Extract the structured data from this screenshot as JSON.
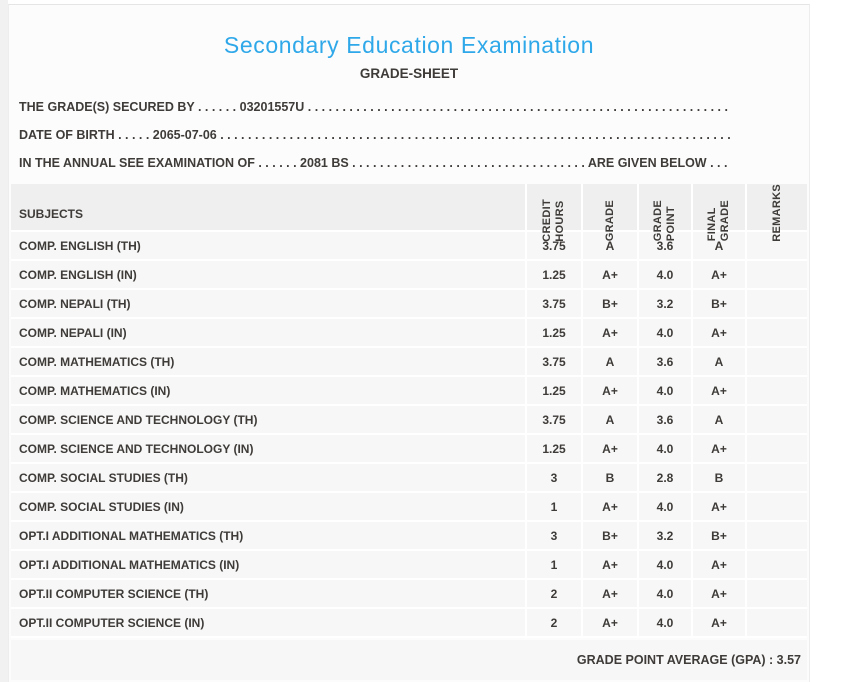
{
  "colors": {
    "accent_blue": "#2fa8e9",
    "text_dark": "#3e3b38",
    "row_bg": "#f7f7f7",
    "header_bg": "#efefef"
  },
  "page": {
    "title": "Secondary Education Examination",
    "subtitle": "GRADE-SHEET"
  },
  "info_lines": {
    "secured_by": "THE GRADE(S) SECURED BY . . . . . . 03201557U . . . . . . . . . . . . . . . . . . . . . . . . . . . . . . . . . . . . . . . . . . . . . . . . . . . . . . . . . . . . . . . . .",
    "date_of_birth": "DATE OF BIRTH . . . . . 2065-07-06 . . . . . . . . . . . . . . . . . . . . . . . . . . . . . . . . . . . . . . . . . . . . . . . . . . . . . . . . . . . . . . . . . . . . . . . . . .",
    "examination_of": "IN THE ANNUAL SEE EXAMINATION OF . . . . . . 2081 BS . . . . . . . . . . . . . . . . . . . . . . . . . . . . . . . . . . ARE GIVEN BELOW . . ."
  },
  "table": {
    "subjects_header": "SUBJECTS",
    "column_headers": [
      "CREDIT\nHOURS",
      "GRADE",
      "GRADE\nPOINT",
      "FINAL\nGRADE",
      "REMARKS"
    ],
    "rows": [
      {
        "subject": "COMP. ENGLISH (TH)",
        "credit_hours": "3.75",
        "grade": "A",
        "grade_point": "3.6",
        "final_grade": "A",
        "remarks": ""
      },
      {
        "subject": "COMP. ENGLISH (IN)",
        "credit_hours": "1.25",
        "grade": "A+",
        "grade_point": "4.0",
        "final_grade": "A+",
        "remarks": ""
      },
      {
        "subject": "COMP. NEPALI (TH)",
        "credit_hours": "3.75",
        "grade": "B+",
        "grade_point": "3.2",
        "final_grade": "B+",
        "remarks": ""
      },
      {
        "subject": "COMP. NEPALI (IN)",
        "credit_hours": "1.25",
        "grade": "A+",
        "grade_point": "4.0",
        "final_grade": "A+",
        "remarks": ""
      },
      {
        "subject": "COMP. MATHEMATICS (TH)",
        "credit_hours": "3.75",
        "grade": "A",
        "grade_point": "3.6",
        "final_grade": "A",
        "remarks": ""
      },
      {
        "subject": "COMP. MATHEMATICS (IN)",
        "credit_hours": "1.25",
        "grade": "A+",
        "grade_point": "4.0",
        "final_grade": "A+",
        "remarks": ""
      },
      {
        "subject": "COMP. SCIENCE AND TECHNOLOGY (TH)",
        "credit_hours": "3.75",
        "grade": "A",
        "grade_point": "3.6",
        "final_grade": "A",
        "remarks": ""
      },
      {
        "subject": "COMP. SCIENCE AND TECHNOLOGY (IN)",
        "credit_hours": "1.25",
        "grade": "A+",
        "grade_point": "4.0",
        "final_grade": "A+",
        "remarks": ""
      },
      {
        "subject": "COMP. SOCIAL STUDIES (TH)",
        "credit_hours": "3",
        "grade": "B",
        "grade_point": "2.8",
        "final_grade": "B",
        "remarks": ""
      },
      {
        "subject": "COMP. SOCIAL STUDIES (IN)",
        "credit_hours": "1",
        "grade": "A+",
        "grade_point": "4.0",
        "final_grade": "A+",
        "remarks": ""
      },
      {
        "subject": "OPT.I ADDITIONAL MATHEMATICS (TH)",
        "credit_hours": "3",
        "grade": "B+",
        "grade_point": "3.2",
        "final_grade": "B+",
        "remarks": ""
      },
      {
        "subject": "OPT.I ADDITIONAL MATHEMATICS (IN)",
        "credit_hours": "1",
        "grade": "A+",
        "grade_point": "4.0",
        "final_grade": "A+",
        "remarks": ""
      },
      {
        "subject": "OPT.II COMPUTER SCIENCE (TH)",
        "credit_hours": "2",
        "grade": "A+",
        "grade_point": "4.0",
        "final_grade": "A+",
        "remarks": ""
      },
      {
        "subject": "OPT.II COMPUTER SCIENCE (IN)",
        "credit_hours": "2",
        "grade": "A+",
        "grade_point": "4.0",
        "final_grade": "A+",
        "remarks": ""
      }
    ]
  },
  "footer": {
    "gpa_text": "GRADE POINT AVERAGE (GPA) : 3.57"
  }
}
